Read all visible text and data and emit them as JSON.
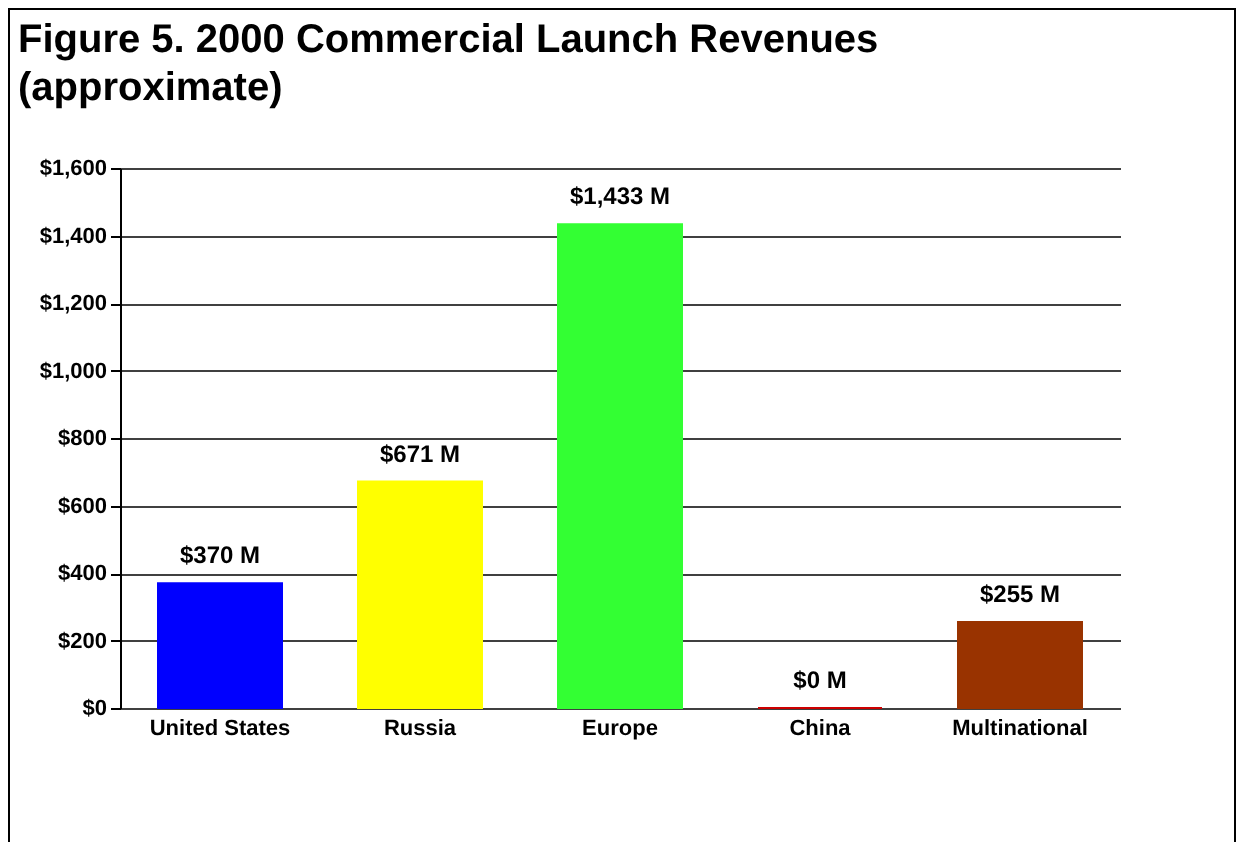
{
  "chart_data": {
    "type": "bar",
    "title": "Figure 5. 2000 Commercial Launch Revenues (approximate)",
    "categories": [
      "United States",
      "Russia",
      "Europe",
      "China",
      "Multinational"
    ],
    "values": [
      370,
      671,
      1433,
      0,
      255
    ],
    "value_labels": [
      "$370 M",
      "$671 M",
      "$1,433 M",
      "$0 M",
      "$255 M"
    ],
    "colors": [
      "#0000ff",
      "#ffff00",
      "#33ff33",
      "#cc0000",
      "#993300"
    ],
    "ylim": [
      0,
      1600
    ],
    "yticks": [
      {
        "value": 0,
        "label": "$0"
      },
      {
        "value": 200,
        "label": "$200"
      },
      {
        "value": 400,
        "label": "$400"
      },
      {
        "value": 600,
        "label": "$600"
      },
      {
        "value": 800,
        "label": "$800"
      },
      {
        "value": 1000,
        "label": "$1,000"
      },
      {
        "value": 1200,
        "label": "$1,200"
      },
      {
        "value": 1400,
        "label": "$1,400"
      },
      {
        "value": 1600,
        "label": "$1,600"
      }
    ],
    "grid": true
  }
}
